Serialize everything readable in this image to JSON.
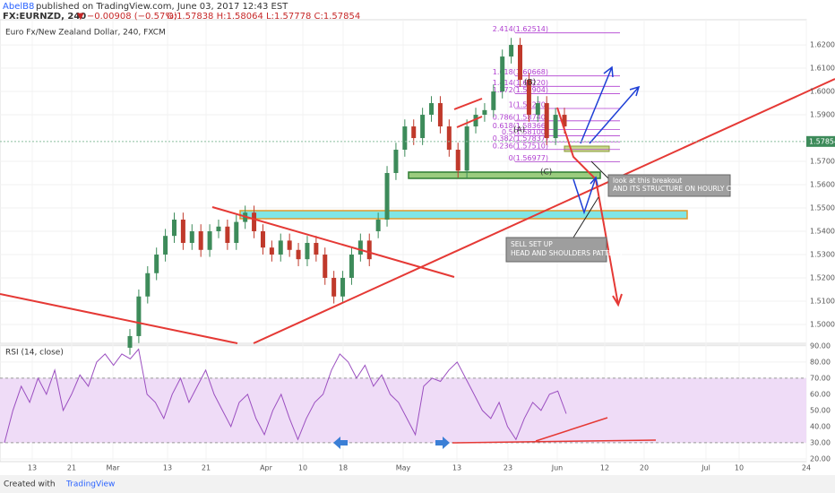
{
  "header": {
    "author": "AbelB8",
    "published": "published on TradingView.com, June 03, 2017 12:43 EST",
    "symbol": "FX:EURNZD, 240",
    "change": "▼ −0.00908 (−0.57%)",
    "ohlc": "O:1.57838 H:1.58064 L:1.57778 C:1.57854"
  },
  "footer": {
    "created": "Created with",
    "brand": "TradingView"
  },
  "chart_data": [
    {
      "type": "candlestick",
      "title": "Euro Fx/New Zealand Dollar, 240, FXCM",
      "ohlc": [
        [
          1.49,
          1.498,
          1.487,
          1.495
        ],
        [
          1.495,
          1.515,
          1.492,
          1.512
        ],
        [
          1.512,
          1.525,
          1.509,
          1.522
        ],
        [
          1.522,
          1.533,
          1.519,
          1.53
        ],
        [
          1.53,
          1.541,
          1.527,
          1.538
        ],
        [
          1.538,
          1.548,
          1.535,
          1.545
        ],
        [
          1.545,
          1.548,
          1.532,
          1.535
        ],
        [
          1.535,
          1.543,
          1.532,
          1.54
        ],
        [
          1.54,
          1.543,
          1.529,
          1.532
        ],
        [
          1.532,
          1.543,
          1.529,
          1.54
        ],
        [
          1.54,
          1.545,
          1.537,
          1.542
        ],
        [
          1.542,
          1.545,
          1.532,
          1.535
        ],
        [
          1.535,
          1.547,
          1.532,
          1.544
        ],
        [
          1.544,
          1.551,
          1.541,
          1.548
        ],
        [
          1.548,
          1.551,
          1.537,
          1.54
        ],
        [
          1.54,
          1.543,
          1.53,
          1.533
        ],
        [
          1.533,
          1.536,
          1.527,
          1.53
        ],
        [
          1.53,
          1.539,
          1.527,
          1.536
        ],
        [
          1.536,
          1.539,
          1.529,
          1.532
        ],
        [
          1.532,
          1.535,
          1.525,
          1.528
        ],
        [
          1.528,
          1.538,
          1.525,
          1.535
        ],
        [
          1.535,
          1.538,
          1.527,
          1.53
        ],
        [
          1.53,
          1.533,
          1.517,
          1.52
        ],
        [
          1.52,
          1.523,
          1.509,
          1.512
        ],
        [
          1.512,
          1.523,
          1.509,
          1.52
        ],
        [
          1.52,
          1.533,
          1.517,
          1.53
        ],
        [
          1.53,
          1.539,
          1.527,
          1.536
        ],
        [
          1.536,
          1.539,
          1.525,
          1.528
        ],
        [
          1.54,
          1.548,
          1.537,
          1.545
        ],
        [
          1.545,
          1.568,
          1.542,
          1.565
        ],
        [
          1.565,
          1.578,
          1.562,
          1.575
        ],
        [
          1.575,
          1.588,
          1.572,
          1.585
        ],
        [
          1.585,
          1.588,
          1.577,
          1.58
        ],
        [
          1.58,
          1.593,
          1.577,
          1.59
        ],
        [
          1.59,
          1.598,
          1.587,
          1.595
        ],
        [
          1.595,
          1.598,
          1.582,
          1.585
        ],
        [
          1.585,
          1.588,
          1.572,
          1.575
        ],
        [
          1.575,
          1.578,
          1.563,
          1.566
        ],
        [
          1.566,
          1.588,
          1.563,
          1.585
        ],
        [
          1.585,
          1.593,
          1.582,
          1.59
        ],
        [
          1.59,
          1.595,
          1.587,
          1.592
        ],
        [
          1.592,
          1.603,
          1.589,
          1.6
        ],
        [
          1.6,
          1.618,
          1.597,
          1.615
        ],
        [
          1.615,
          1.623,
          1.612,
          1.62
        ],
        [
          1.62,
          1.623,
          1.602,
          1.605
        ],
        [
          1.605,
          1.608,
          1.587,
          1.59
        ],
        [
          1.59,
          1.598,
          1.587,
          1.595
        ],
        [
          1.595,
          1.598,
          1.577,
          1.58
        ],
        [
          1.58,
          1.593,
          1.577,
          1.59
        ],
        [
          1.59,
          1.593,
          1.582,
          1.585
        ]
      ],
      "up_color": "#3d8b5a",
      "down_color": "#c0392b",
      "ylim": [
        1.4919,
        1.6308
      ],
      "yticks": [
        {
          "value": 1.5,
          "label": "1.50000"
        },
        {
          "value": 1.51,
          "label": "1.51000"
        },
        {
          "value": 1.52,
          "label": "1.52000"
        },
        {
          "value": 1.53,
          "label": "1.53000"
        },
        {
          "value": 1.54,
          "label": "1.54000"
        },
        {
          "value": 1.55,
          "label": "1.55000"
        },
        {
          "value": 1.56,
          "label": "1.56000"
        },
        {
          "value": 1.57,
          "label": "1.57000"
        },
        {
          "value": 1.59,
          "label": "1.59000"
        },
        {
          "value": 1.6,
          "label": "1.60000"
        },
        {
          "value": 1.61,
          "label": "1.61000"
        },
        {
          "value": 1.62,
          "label": "1.62000"
        }
      ],
      "last_price": {
        "value": 1.57854,
        "label": "1.57854"
      },
      "fib_levels": [
        {
          "value": 1.56977,
          "label": "0(1.56977)"
        },
        {
          "value": 1.5751,
          "label": "0.236(1.57510)"
        },
        {
          "value": 1.57837,
          "label": "0.382(1.57837)"
        },
        {
          "value": 1.581,
          "label": "0.5(1.58100)"
        },
        {
          "value": 1.58366,
          "label": "0.618(1.58366)"
        },
        {
          "value": 1.5874,
          "label": "0.786(1.58740)"
        },
        {
          "value": 1.5927,
          "label": "1(1.59270)"
        },
        {
          "value": 1.59904,
          "label": "1.272(1.59904)"
        },
        {
          "value": 1.6022,
          "label": "1.414(1.60220)"
        },
        {
          "value": 1.60668,
          "label": "1.618(1.60668)"
        },
        {
          "value": 1.62514,
          "label": "2.414(1.62514)"
        }
      ],
      "fib_color": "#b03fd0",
      "annotations": [
        "(A)",
        "(B)",
        "(C)",
        "look at this breakout",
        "AND ITS STRUCTURE ON HOURLY CHART",
        "SELL SET UP",
        "HEAD AND SHOULDERS PATTERN"
      ],
      "xticks": [
        "13",
        "21",
        "Mar",
        "13",
        "21",
        "Apr",
        "10",
        "18",
        "May",
        "13",
        "23",
        "Jun",
        "12",
        "20",
        "Jul",
        "10",
        "24"
      ]
    },
    {
      "type": "line",
      "title": "RSI (14, close)",
      "color": "#9b4fc0",
      "values": [
        30,
        50,
        65,
        55,
        70,
        60,
        75,
        50,
        60,
        72,
        65,
        80,
        85,
        78,
        85,
        82,
        88,
        60,
        55,
        45,
        60,
        70,
        55,
        65,
        75,
        60,
        50,
        40,
        55,
        60,
        45,
        35,
        50,
        60,
        45,
        32,
        45,
        55,
        60,
        75,
        85,
        80,
        70,
        78,
        65,
        72,
        60,
        55,
        45,
        35,
        65,
        70,
        68,
        75,
        80,
        70,
        60,
        50,
        45,
        55,
        40,
        32,
        45,
        55,
        50,
        60,
        62,
        48
      ],
      "ylim": [
        18.3,
        90.5
      ],
      "band": [
        30,
        70
      ],
      "yticks": [
        {
          "value": 20,
          "label": "20.00"
        },
        {
          "value": 30,
          "label": "30.00"
        },
        {
          "value": 40,
          "label": "40.00"
        },
        {
          "value": 50,
          "label": "50.00"
        },
        {
          "value": 60,
          "label": "60.00"
        },
        {
          "value": 70,
          "label": "70.00"
        },
        {
          "value": 80,
          "label": "80.00"
        },
        {
          "value": 90,
          "label": "90.00"
        }
      ]
    }
  ]
}
